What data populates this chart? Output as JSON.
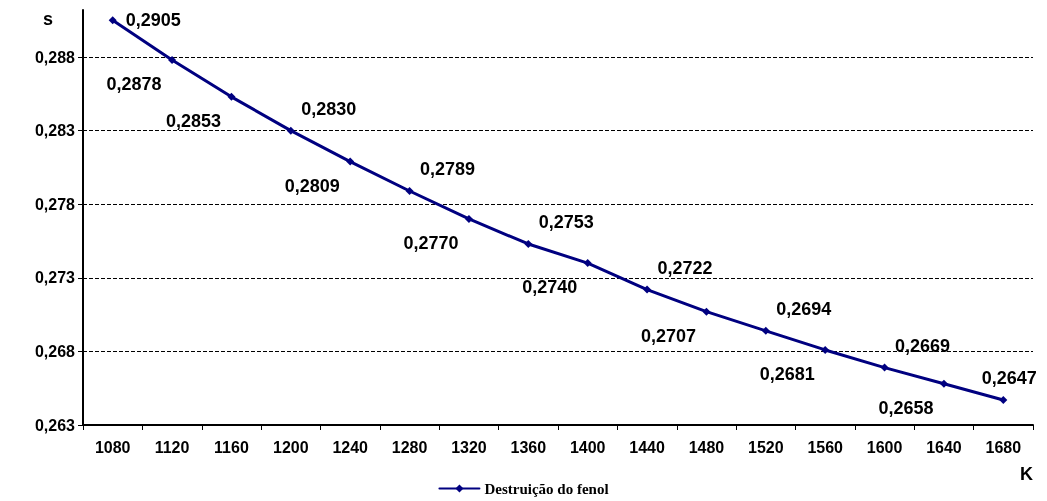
{
  "chart_data": {
    "type": "line",
    "xlabel": "K",
    "ylabel": "s",
    "categories": [
      "1080",
      "1120",
      "1160",
      "1200",
      "1240",
      "1280",
      "1320",
      "1360",
      "1400",
      "1440",
      "1480",
      "1520",
      "1560",
      "1600",
      "1640",
      "1680"
    ],
    "series": [
      {
        "name": "Destruição do fenol",
        "color": "#000080",
        "values": [
          0.2905,
          0.2878,
          0.2853,
          0.283,
          0.2809,
          0.2789,
          0.277,
          0.2753,
          0.274,
          0.2722,
          0.2707,
          0.2694,
          0.2681,
          0.2669,
          0.2658,
          0.2647
        ],
        "value_labels": [
          "0,2905",
          "0,2878",
          "0,2853",
          "0,2830",
          "0,2809",
          "0,2789",
          "0,2770",
          "0,2753",
          "0,2740",
          "0,2722",
          "0,2707",
          "0,2694",
          "0,2681",
          "0,2669",
          "0,2658",
          "0,2647"
        ]
      }
    ],
    "ylim": [
      0.263,
      0.2912
    ],
    "yticks": [
      {
        "value": 0.263,
        "label": "0,263"
      },
      {
        "value": 0.268,
        "label": "0,268"
      },
      {
        "value": 0.273,
        "label": "0,273"
      },
      {
        "value": 0.278,
        "label": "0,278"
      },
      {
        "value": 0.283,
        "label": "0,283"
      },
      {
        "value": 0.288,
        "label": "0,288"
      }
    ],
    "grid": "y",
    "legend": "bottom",
    "marker": "diamond",
    "line_style": "solid"
  }
}
